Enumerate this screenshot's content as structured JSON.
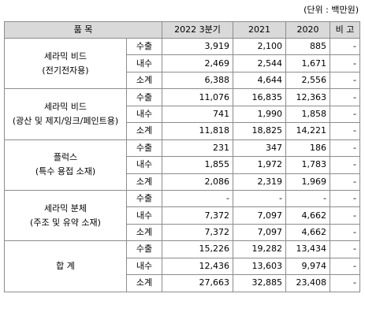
{
  "unit_note": "(단위 : 백만원)",
  "headers": {
    "product": "품 목",
    "y2022": "2022 3분기",
    "y2021": "2021",
    "y2020": "2020",
    "note": "비 고"
  },
  "groups": [
    {
      "name": "세라믹 비드",
      "sub": "(전기전자용)",
      "rows": [
        {
          "kind": "수출",
          "v2022": "3,919",
          "v2021": "2,100",
          "v2020": "885",
          "note": "-"
        },
        {
          "kind": "내수",
          "v2022": "2,469",
          "v2021": "2,544",
          "v2020": "1,671",
          "note": "-"
        },
        {
          "kind": "소계",
          "v2022": "6,388",
          "v2021": "4,644",
          "v2020": "2,556",
          "note": "-"
        }
      ]
    },
    {
      "name": "세라믹 비드",
      "sub": "(광산 및 제지/잉크/페인트용)",
      "rows": [
        {
          "kind": "수출",
          "v2022": "11,076",
          "v2021": "16,835",
          "v2020": "12,363",
          "note": "-"
        },
        {
          "kind": "내수",
          "v2022": "741",
          "v2021": "1,990",
          "v2020": "1,858",
          "note": "-"
        },
        {
          "kind": "소계",
          "v2022": "11,818",
          "v2021": "18,825",
          "v2020": "14,221",
          "note": "-"
        }
      ]
    },
    {
      "name": "플럭스",
      "sub": "(특수 용접 소재)",
      "rows": [
        {
          "kind": "수출",
          "v2022": "231",
          "v2021": "347",
          "v2020": "186",
          "note": "-"
        },
        {
          "kind": "내수",
          "v2022": "1,855",
          "v2021": "1,972",
          "v2020": "1,783",
          "note": "-"
        },
        {
          "kind": "소계",
          "v2022": "2,086",
          "v2021": "2,319",
          "v2020": "1,969",
          "note": "-"
        }
      ]
    },
    {
      "name": "세라믹 분체",
      "sub": "(주조 및 유약 소재)",
      "rows": [
        {
          "kind": "수출",
          "v2022": "-",
          "v2021": "-",
          "v2020": "-",
          "note": "-"
        },
        {
          "kind": "내수",
          "v2022": "7,372",
          "v2021": "7,097",
          "v2020": "4,662",
          "note": "-"
        },
        {
          "kind": "소계",
          "v2022": "7,372",
          "v2021": "7,097",
          "v2020": "4,662",
          "note": "-"
        }
      ]
    },
    {
      "name": "합 계",
      "sub": "",
      "rows": [
        {
          "kind": "수출",
          "v2022": "15,226",
          "v2021": "19,282",
          "v2020": "13,434",
          "note": "-"
        },
        {
          "kind": "내수",
          "v2022": "12,436",
          "v2021": "13,603",
          "v2020": "9,974",
          "note": "-"
        },
        {
          "kind": "소계",
          "v2022": "27,663",
          "v2021": "32,885",
          "v2020": "23,408",
          "note": "-"
        }
      ]
    }
  ]
}
